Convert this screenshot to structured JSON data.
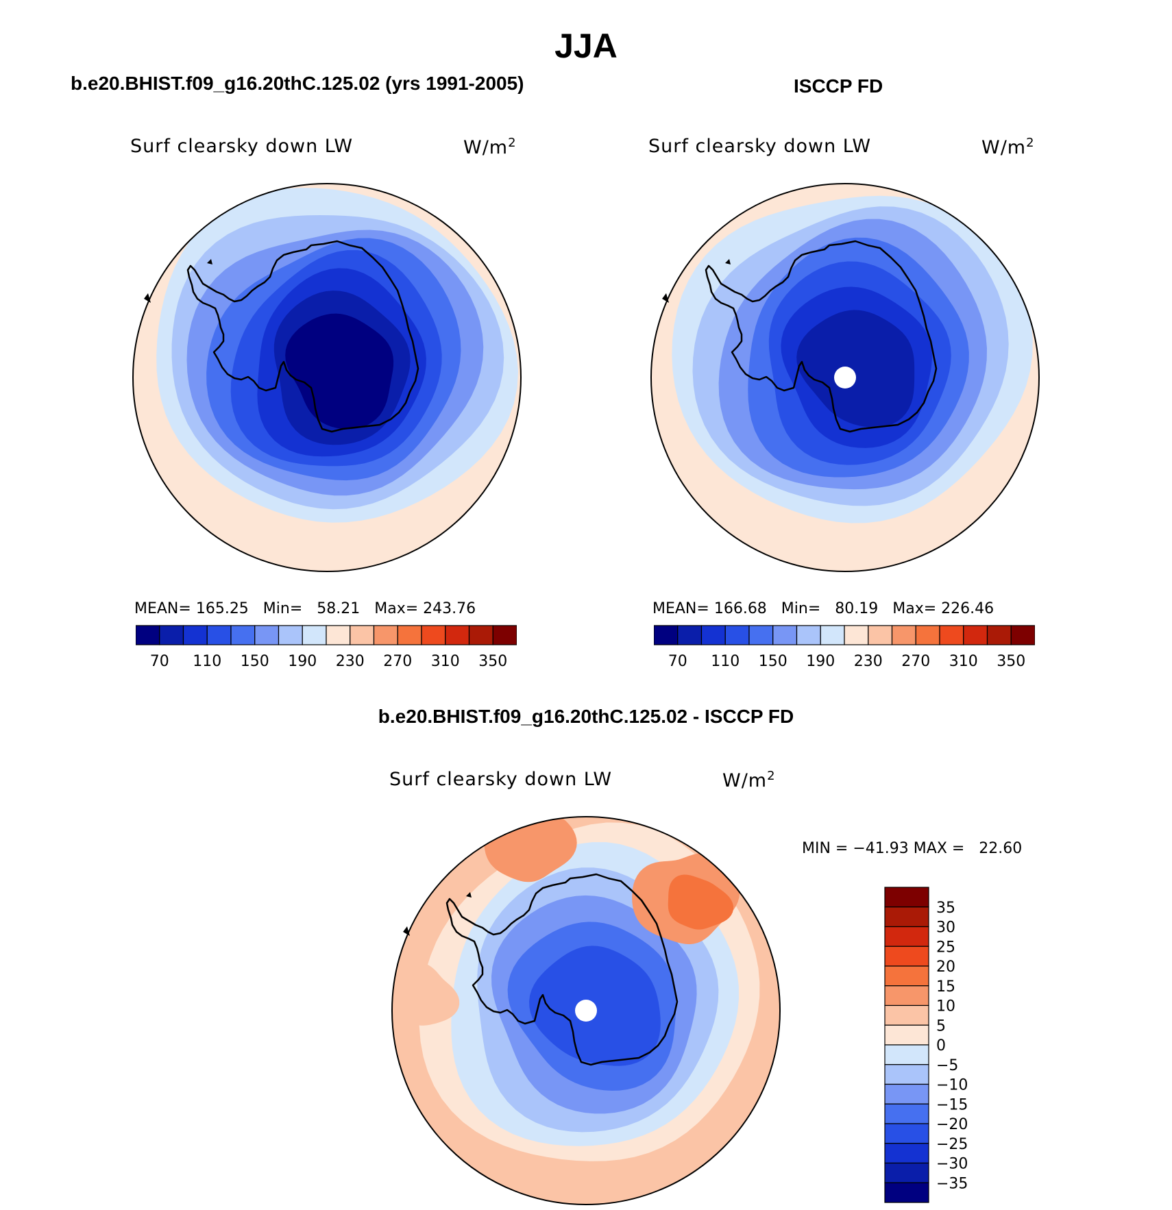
{
  "figure": {
    "title": "JJA",
    "panel_left_title": "b.e20.BHIST.f09_g16.20thC.125.02 (yrs 1991-2005)",
    "panel_right_title": "ISCCP FD",
    "diff_title": "b.e20.BHIST.f09_g16.20thC.125.02 - ISCCP FD"
  },
  "chart_data": [
    {
      "type": "heatmap",
      "projection": "south-polar-stereographic",
      "title": "b.e20.BHIST.f09_g16.20thC.125.02 (yrs 1991-2005)",
      "variable": "Surf clearsky down LW",
      "units": "W/m2",
      "stats": {
        "mean_label": "MEAN=",
        "mean": "165.25",
        "min_label": "Min=",
        "min": "58.21",
        "max_label": "Max=",
        "max": "243.76"
      },
      "levels": [
        70,
        90,
        110,
        130,
        150,
        170,
        190,
        210,
        230,
        250,
        270,
        290,
        310,
        330,
        350
      ],
      "tick_labels": [
        "70",
        "110",
        "150",
        "190",
        "230",
        "270",
        "310",
        "350"
      ],
      "colors": [
        "#000080",
        "#0a1eaa",
        "#1432d2",
        "#2850e6",
        "#4670f0",
        "#7896f5",
        "#aac4fa",
        "#d2e6fb",
        "#fde6d6",
        "#fbc4a6",
        "#f7966a",
        "#f5733c",
        "#ee4a1e",
        "#d2280e",
        "#aa1a06",
        "#7d0000"
      ],
      "rings": [
        {
          "color": "#fde6d6",
          "range": [
            230,
            250
          ]
        },
        {
          "color": "#d2e6fb",
          "range": [
            210,
            230
          ]
        },
        {
          "color": "#aac4fa",
          "range": [
            190,
            210
          ]
        },
        {
          "color": "#7896f5",
          "range": [
            170,
            190
          ]
        },
        {
          "color": "#4670f0",
          "range": [
            150,
            170
          ]
        },
        {
          "color": "#2850e6",
          "range": [
            130,
            150
          ]
        },
        {
          "color": "#1432d2",
          "range": [
            110,
            130
          ]
        },
        {
          "color": "#0a1eaa",
          "range": [
            90,
            110
          ]
        },
        {
          "color": "#000080",
          "range": [
            50,
            90
          ]
        }
      ],
      "pole_missing": false
    },
    {
      "type": "heatmap",
      "projection": "south-polar-stereographic",
      "title": "ISCCP FD",
      "variable": "Surf clearsky down LW",
      "units": "W/m2",
      "stats": {
        "mean_label": "MEAN=",
        "mean": "166.68",
        "min_label": "Min=",
        "min": "80.19",
        "max_label": "Max=",
        "max": "226.46"
      },
      "levels": [
        70,
        90,
        110,
        130,
        150,
        170,
        190,
        210,
        230,
        250,
        270,
        290,
        310,
        330,
        350
      ],
      "tick_labels": [
        "70",
        "110",
        "150",
        "190",
        "230",
        "270",
        "310",
        "350"
      ],
      "colors": [
        "#000080",
        "#0a1eaa",
        "#1432d2",
        "#2850e6",
        "#4670f0",
        "#7896f5",
        "#aac4fa",
        "#d2e6fb",
        "#fde6d6",
        "#fbc4a6",
        "#f7966a",
        "#f5733c",
        "#ee4a1e",
        "#d2280e",
        "#aa1a06",
        "#7d0000"
      ],
      "rings": [
        {
          "color": "#fde6d6",
          "range": [
            230,
            250
          ]
        },
        {
          "color": "#d2e6fb",
          "range": [
            210,
            230
          ]
        },
        {
          "color": "#aac4fa",
          "range": [
            190,
            210
          ]
        },
        {
          "color": "#7896f5",
          "range": [
            170,
            190
          ]
        },
        {
          "color": "#4670f0",
          "range": [
            150,
            170
          ]
        },
        {
          "color": "#2850e6",
          "range": [
            130,
            150
          ]
        },
        {
          "color": "#1432d2",
          "range": [
            110,
            130
          ]
        },
        {
          "color": "#0a1eaa",
          "range": [
            90,
            110
          ]
        }
      ],
      "pole_missing": true
    },
    {
      "type": "heatmap",
      "projection": "south-polar-stereographic",
      "title": "b.e20.BHIST.f09_g16.20thC.125.02 - ISCCP FD",
      "variable": "Surf clearsky down LW",
      "units": "W/m2",
      "stats": {
        "min_label": "MIN =",
        "min": "−41.93",
        "max_label": "MAX =",
        "max": "22.60"
      },
      "levels": [
        -35,
        -30,
        -25,
        -20,
        -15,
        -10,
        -5,
        0,
        5,
        10,
        15,
        20,
        25,
        30,
        35
      ],
      "tick_labels": [
        "35",
        "30",
        "25",
        "20",
        "15",
        "10",
        "5",
        "0",
        "−5",
        "−10",
        "−15",
        "−20",
        "−25",
        "−30",
        "−35"
      ],
      "colors": [
        "#000080",
        "#0a1eaa",
        "#1432d2",
        "#2850e6",
        "#4670f0",
        "#7896f5",
        "#aac4fa",
        "#d2e6fb",
        "#fde6d6",
        "#fbc4a6",
        "#f7966a",
        "#f5733c",
        "#ee4a1e",
        "#d2280e",
        "#aa1a06",
        "#7d0000"
      ],
      "rings": [
        {
          "color": "#fbc4a6",
          "range": [
            5,
            10
          ]
        },
        {
          "color": "#fde6d6",
          "range": [
            0,
            5
          ]
        },
        {
          "color": "#d2e6fb",
          "range": [
            -5,
            0
          ]
        },
        {
          "color": "#aac4fa",
          "range": [
            -10,
            -5
          ]
        },
        {
          "color": "#7896f5",
          "range": [
            -15,
            -10
          ]
        },
        {
          "color": "#4670f0",
          "range": [
            -20,
            -15
          ]
        },
        {
          "color": "#2850e6",
          "range": [
            -25,
            -20
          ]
        }
      ],
      "pole_missing": true
    }
  ]
}
